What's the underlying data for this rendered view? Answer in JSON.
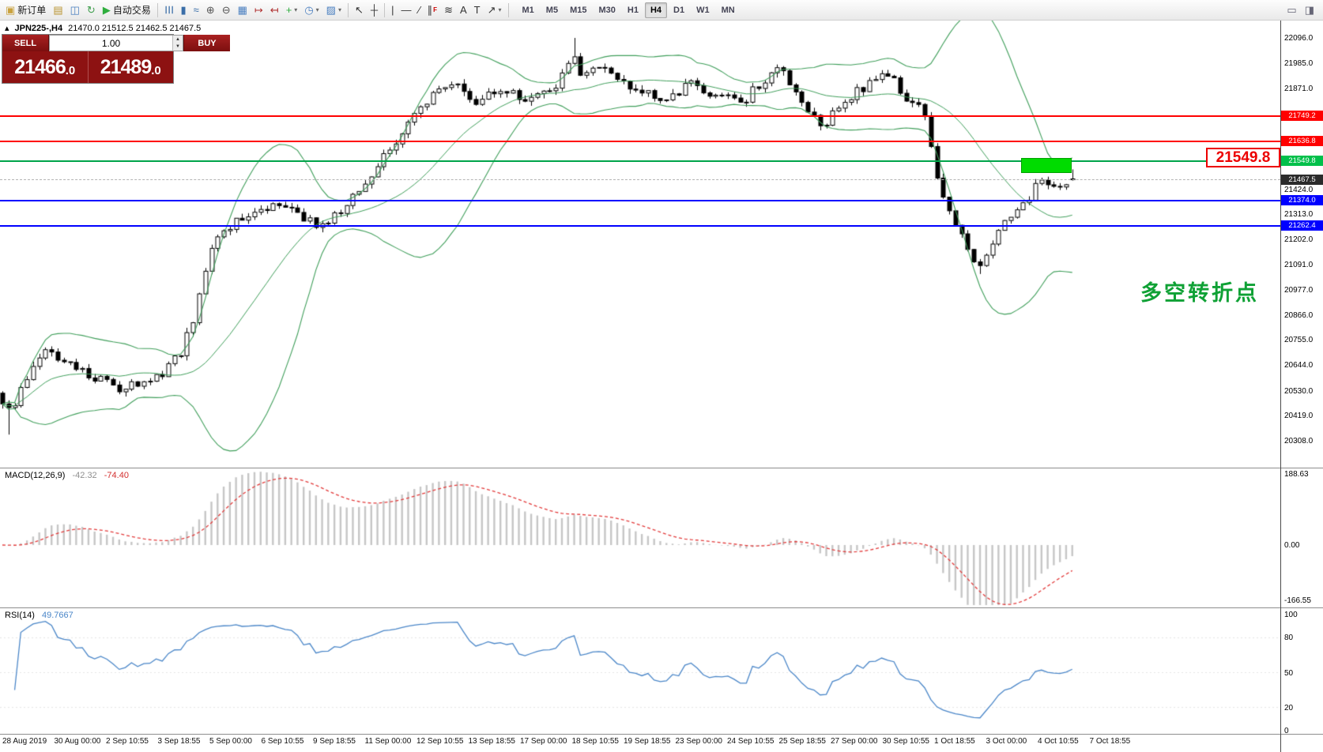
{
  "toolbar": {
    "dropdown_glyph": "▾",
    "items": [
      {
        "name": "new-order-button",
        "glyph": "▣",
        "glyph_color": "#c9a23e",
        "label": "新订单"
      },
      {
        "name": "chart-window-icon",
        "glyph": "▤",
        "glyph_color": "#b8932f"
      },
      {
        "name": "market-watch-icon",
        "glyph": "◫",
        "glyph_color": "#4a7fc0"
      },
      {
        "name": "refresh-icon",
        "glyph": "↻",
        "glyph_color": "#3f9e4d"
      },
      {
        "name": "autotrading-button",
        "glyph": "▶",
        "glyph_color": "#2fae3e",
        "label": "自动交易"
      },
      {
        "sep": true
      },
      {
        "name": "bar-chart-button",
        "glyph": "☰",
        "rot": true,
        "glyph_color": "#3a6ea8"
      },
      {
        "name": "candle-chart-button",
        "glyph": "▮",
        "glyph_color": "#3a6ea8"
      },
      {
        "name": "line-chart-button",
        "glyph": "≈",
        "glyph_color": "#3a6ea8"
      },
      {
        "name": "zoom-in-button",
        "glyph": "⊕",
        "glyph_color": "#555555"
      },
      {
        "name": "zoom-out-button",
        "glyph": "⊖",
        "glyph_color": "#555555"
      },
      {
        "name": "tile-windows-button",
        "glyph": "▦",
        "glyph_color": "#4a7fc0"
      },
      {
        "name": "auto-scroll-button",
        "glyph": "↦",
        "glyph_color": "#b03030"
      },
      {
        "name": "chart-shift-button",
        "glyph": "↤",
        "glyph_color": "#b03030"
      },
      {
        "name": "new-chart-button",
        "glyph": "+",
        "glyph_color": "#2fae3e",
        "dropdown": true
      },
      {
        "name": "periods-button",
        "glyph": "◷",
        "glyph_color": "#4a7fc0",
        "dropdown": true
      },
      {
        "name": "templates-button",
        "glyph": "▨",
        "glyph_color": "#4a7fc0",
        "dropdown": true
      },
      {
        "sep": true
      },
      {
        "name": "cursor-button",
        "glyph": "↖",
        "glyph_color": "#333333"
      },
      {
        "name": "crosshair-button",
        "glyph": "┼",
        "glyph_color": "#333333"
      },
      {
        "sep": true
      },
      {
        "name": "vertical-line-button",
        "glyph": "|",
        "glyph_color": "#333333"
      },
      {
        "name": "horizontal-line-button",
        "glyph": "―",
        "glyph_color": "#333333"
      },
      {
        "name": "trendline-button",
        "glyph": "∕",
        "glyph_color": "#333333"
      },
      {
        "name": "channel-button",
        "glyph": "∥",
        "glyph_color": "#333333",
        "badge": "F"
      },
      {
        "name": "fibonacci-button",
        "glyph": "≋",
        "glyph_color": "#333333"
      },
      {
        "name": "text-button",
        "glyph": "A",
        "glyph_color": "#333333"
      },
      {
        "name": "label-button",
        "glyph": "T",
        "glyph_color": "#333333"
      },
      {
        "name": "shapes-button",
        "glyph": "↗",
        "glyph_color": "#333333",
        "dropdown": true
      },
      {
        "sep": true
      }
    ],
    "timeframes": [
      {
        "name": "tf-m1",
        "label": "M1"
      },
      {
        "name": "tf-m5",
        "label": "M5"
      },
      {
        "name": "tf-m15",
        "label": "M15"
      },
      {
        "name": "tf-m30",
        "label": "M30"
      },
      {
        "name": "tf-h1",
        "label": "H1"
      },
      {
        "name": "tf-h4",
        "label": "H4",
        "active": true
      },
      {
        "name": "tf-d1",
        "label": "D1"
      },
      {
        "name": "tf-w1",
        "label": "W1"
      },
      {
        "name": "tf-mn",
        "label": "MN"
      }
    ],
    "right_items": [
      {
        "name": "float-window-icon",
        "glyph": "▭"
      },
      {
        "name": "docking-icon",
        "glyph": "◨"
      }
    ]
  },
  "symbol_bar": {
    "icon": "▴",
    "symbol": "JPN225-,H4",
    "ohlc": "21470.0 21512.5 21462.5 21467.5"
  },
  "trade_panel": {
    "sell_label": "SELL",
    "buy_label": "BUY",
    "volume": "1.00",
    "spin_up": "▲",
    "spin_down": "▼",
    "sell_price_main": "21466",
    "sell_price_dec": ".0",
    "buy_price_main": "21489",
    "buy_price_dec": ".0"
  },
  "chart": {
    "y_ticks": [
      22096.0,
      21985.0,
      21871.0,
      21424.0,
      21313.0,
      21202.0,
      21091.0,
      20977.0,
      20866.0,
      20755.0,
      20644.0,
      20530.0,
      20419.0,
      20308.0
    ],
    "hlines": [
      {
        "name": "resistance-line-upper",
        "price": 21749.2,
        "color": "#ff0000"
      },
      {
        "name": "resistance-line-lower",
        "price": 21636.8,
        "color": "#ff0000"
      },
      {
        "name": "pivot-line",
        "price": 21549.8,
        "color": "#00a44a"
      },
      {
        "name": "support-line-upper",
        "price": 21374.0,
        "color": "#0000ff"
      },
      {
        "name": "support-line-lower",
        "price": 21262.4,
        "color": "#0000ff"
      }
    ],
    "current_price": 21467.5,
    "badges": [
      {
        "label": "21749.2",
        "price": 21749.2,
        "bg": "#ff0000"
      },
      {
        "label": "21636.8",
        "price": 21636.8,
        "bg": "#ff0000"
      },
      {
        "label": "21549.8",
        "price": 21549.8,
        "bg": "#00c04a"
      },
      {
        "label": "21467.5",
        "price": 21467.5,
        "bg": "#2b2b2b"
      },
      {
        "label": "21374.0",
        "price": 21374.0,
        "bg": "#0000ff"
      },
      {
        "label": "21262.4",
        "price": 21262.4,
        "bg": "#0000ff"
      }
    ],
    "big_price_label": "21549.8",
    "annotation": "多空转折点",
    "highlight_box": {
      "x": 1292,
      "width": 64,
      "price_top": 21562,
      "price_bottom": 21498,
      "color": "#00dc00"
    }
  },
  "macd": {
    "label": "MACD(12,26,9)",
    "main_value": "-42.32",
    "signal_value": "-74.40",
    "axis": [
      {
        "label": "188.63",
        "value": 188.63
      },
      {
        "label": "0.00",
        "value": 0
      },
      {
        "label": "-166.55",
        "value": -166.55
      }
    ]
  },
  "rsi": {
    "label": "RSI(14)",
    "value": "49.7667",
    "axis": [
      {
        "label": "100",
        "value": 100
      },
      {
        "label": "80",
        "value": 80
      },
      {
        "label": "50",
        "value": 50
      },
      {
        "label": "20",
        "value": 20
      },
      {
        "label": "0",
        "value": 0
      }
    ]
  },
  "time_axis": [
    "28 Aug 2019",
    "30 Aug 00:00",
    "2 Sep 10:55",
    "3 Sep 18:55",
    "5 Sep 00:00",
    "6 Sep 10:55",
    "9 Sep 18:55",
    "11 Sep 00:00",
    "12 Sep 10:55",
    "13 Sep 18:55",
    "17 Sep 00:00",
    "18 Sep 10:55",
    "19 Sep 18:55",
    "23 Sep 00:00",
    "24 Sep 10:55",
    "25 Sep 18:55",
    "27 Sep 00:00",
    "30 Sep 10:55",
    "1 Oct 18:55",
    "3 Oct 00:00",
    "4 Oct 10:55",
    "7 Oct 18:55"
  ],
  "chart_data": {
    "type": "candlestick",
    "symbol": "JPN225-",
    "timeframe": "H4",
    "last_ohlc": {
      "open": 21470.0,
      "high": 21512.5,
      "low": 21462.5,
      "close": 21467.5
    },
    "y_range_visible": [
      20308.0,
      22096.0
    ],
    "levels": [
      21749.2,
      21636.8,
      21549.8,
      21374.0,
      21262.4
    ],
    "indicators": [
      "Bollinger Bands",
      "MACD(12,26,9)",
      "RSI(14)"
    ],
    "macd_last": [
      -42.32,
      -74.4
    ],
    "rsi_last": 49.7667,
    "price_path_anchors": [
      [
        0,
        20520
      ],
      [
        10,
        20430
      ],
      [
        22,
        20500
      ],
      [
        40,
        20640
      ],
      [
        60,
        20700
      ],
      [
        90,
        20660
      ],
      [
        115,
        20590
      ],
      [
        145,
        20545
      ],
      [
        175,
        20560
      ],
      [
        205,
        20610
      ],
      [
        228,
        20700
      ],
      [
        242,
        20820
      ],
      [
        256,
        21030
      ],
      [
        268,
        21170
      ],
      [
        288,
        21250
      ],
      [
        318,
        21320
      ],
      [
        348,
        21350
      ],
      [
        378,
        21315
      ],
      [
        408,
        21260
      ],
      [
        433,
        21340
      ],
      [
        458,
        21430
      ],
      [
        483,
        21560
      ],
      [
        508,
        21680
      ],
      [
        533,
        21790
      ],
      [
        556,
        21860
      ],
      [
        578,
        21885
      ],
      [
        598,
        21810
      ],
      [
        618,
        21835
      ],
      [
        642,
        21860
      ],
      [
        663,
        21830
      ],
      [
        683,
        21860
      ],
      [
        703,
        21885
      ],
      [
        723,
        22030
      ],
      [
        733,
        21945
      ],
      [
        748,
        21960
      ],
      [
        768,
        21955
      ],
      [
        788,
        21905
      ],
      [
        813,
        21855
      ],
      [
        833,
        21810
      ],
      [
        858,
        21860
      ],
      [
        878,
        21905
      ],
      [
        898,
        21815
      ],
      [
        918,
        21860
      ],
      [
        938,
        21810
      ],
      [
        963,
        21900
      ],
      [
        983,
        21950
      ],
      [
        1003,
        21895
      ],
      [
        1023,
        21760
      ],
      [
        1043,
        21710
      ],
      [
        1063,
        21800
      ],
      [
        1083,
        21855
      ],
      [
        1103,
        21900
      ],
      [
        1123,
        21950
      ],
      [
        1138,
        21870
      ],
      [
        1153,
        21810
      ],
      [
        1168,
        21760
      ],
      [
        1181,
        21550
      ],
      [
        1193,
        21380
      ],
      [
        1205,
        21300
      ],
      [
        1217,
        21240
      ],
      [
        1228,
        21140
      ],
      [
        1239,
        21090
      ],
      [
        1251,
        21160
      ],
      [
        1262,
        21250
      ],
      [
        1274,
        21305
      ],
      [
        1286,
        21310
      ],
      [
        1298,
        21360
      ],
      [
        1310,
        21460
      ],
      [
        1321,
        21465
      ],
      [
        1331,
        21415
      ],
      [
        1343,
        21455
      ],
      [
        1356,
        21470
      ]
    ]
  }
}
